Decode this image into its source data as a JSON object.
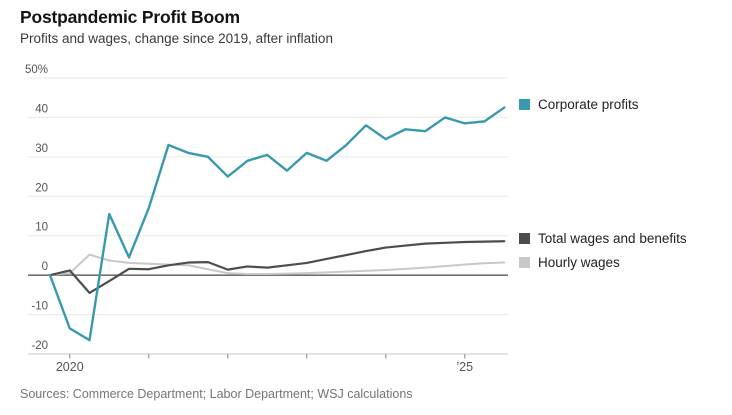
{
  "header": {
    "title": "Postpandemic Profit Boom",
    "subtitle": "Profits and wages, change since 2019, after inflation"
  },
  "source_note": "Sources: Commerce Department; Labor Department; WSJ calculations",
  "colors": {
    "corporate_profits": "#3999AF",
    "total_wages": "#4D4D4D",
    "hourly_wages": "#C8C8C8",
    "grid": "#E9E9E9",
    "zero_line": "#707070",
    "axis_line": "#C9C9C9",
    "tick": "#999999",
    "axis_text": "#555555"
  },
  "chart_data": {
    "type": "line",
    "title": "Postpandemic Profit Boom",
    "subtitle": "Profits and wages, change since 2019, after inflation",
    "unit": "percent change since 2019, after inflation",
    "x": [
      "2019 Q4",
      "2020 Q1",
      "2020 Q2",
      "2020 Q3",
      "2020 Q4",
      "2021 Q1",
      "2021 Q2",
      "2021 Q3",
      "2021 Q4",
      "2022 Q1",
      "2022 Q2",
      "2022 Q3",
      "2022 Q4",
      "2023 Q1",
      "2023 Q2",
      "2023 Q3",
      "2023 Q4",
      "2024 Q1",
      "2024 Q2",
      "2024 Q3",
      "2024 Q4",
      "2025 Q1",
      "2025 Q2",
      "2025 Q3"
    ],
    "series": [
      {
        "name": "Corporate profits",
        "color_key": "corporate_profits",
        "stroke_width": 2.4,
        "values": [
          0,
          -13.5,
          -16.5,
          15.5,
          4.5,
          17,
          33,
          31,
          30,
          25,
          29,
          30.5,
          26.5,
          31,
          29,
          33,
          38,
          34.5,
          37,
          36.5,
          40,
          38.5,
          39,
          42.5
        ]
      },
      {
        "name": "Total wages and benefits",
        "color_key": "total_wages",
        "stroke_width": 2.2,
        "values": [
          0,
          1.2,
          -4.5,
          -1.5,
          1.6,
          1.5,
          2.5,
          3.2,
          3.3,
          1.4,
          2.2,
          1.9,
          2.5,
          3.1,
          4.1,
          5.1,
          6.1,
          7,
          7.5,
          8,
          8.2,
          8.4,
          8.5,
          8.6
        ]
      },
      {
        "name": "Hourly wages",
        "color_key": "hourly_wages",
        "stroke_width": 2,
        "values": [
          0,
          0.5,
          5.2,
          3.7,
          3.1,
          2.9,
          2.7,
          2.5,
          1.5,
          0.5,
          0.3,
          0.3,
          0.4,
          0.5,
          0.7,
          0.9,
          1.1,
          1.3,
          1.6,
          1.9,
          2.3,
          2.7,
          3,
          3.2
        ]
      }
    ],
    "ylim": [
      -20,
      50
    ],
    "yticks": [
      {
        "value": 50,
        "label": "50%"
      },
      {
        "value": 40,
        "label": "40"
      },
      {
        "value": 30,
        "label": "30"
      },
      {
        "value": 20,
        "label": "20"
      },
      {
        "value": 10,
        "label": "10"
      },
      {
        "value": 0,
        "label": "0"
      },
      {
        "value": -10,
        "label": "-10"
      },
      {
        "value": -20,
        "label": "-20"
      }
    ],
    "xticks": [
      {
        "index": 1,
        "label": "2020"
      },
      {
        "index": 5,
        "label": ""
      },
      {
        "index": 9,
        "label": ""
      },
      {
        "index": 13,
        "label": ""
      },
      {
        "index": 17,
        "label": ""
      },
      {
        "index": 21,
        "label": "’25"
      }
    ],
    "grid": "horizontal",
    "legend_position": "right",
    "legend": [
      {
        "label": "Corporate profits"
      },
      {
        "label": "Total wages and benefits"
      },
      {
        "label": "Hourly wages"
      }
    ]
  }
}
